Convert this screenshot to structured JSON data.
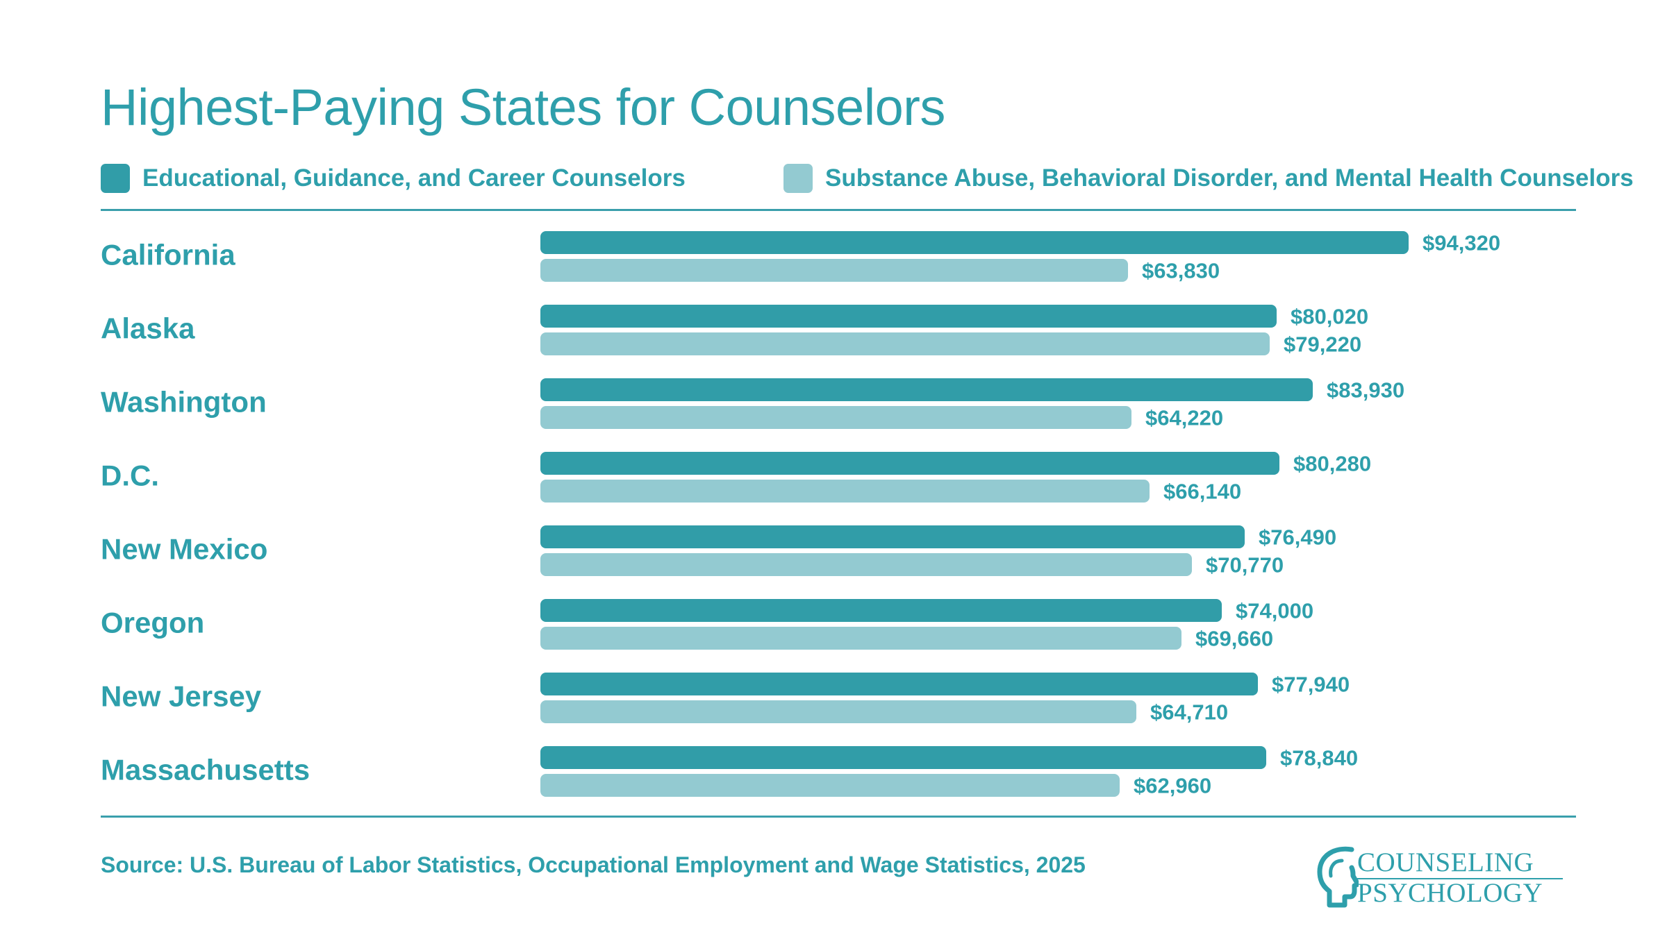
{
  "title": "Highest-Paying States for Counselors",
  "source": "Source: U.S. Bureau of Labor Statistics, Occupational Employment and Wage Statistics, 2025",
  "logo": {
    "line1": "COUNSELING",
    "line2": "PSYCHOLOGY",
    "icon": "head-profile-icon"
  },
  "colors": {
    "dark": "#319da8",
    "light": "#93cad1",
    "text": "#2e9fab"
  },
  "chart_data": {
    "type": "bar",
    "orientation": "horizontal",
    "title": "Highest-Paying States for Counselors",
    "categories": [
      "California",
      "Alaska",
      "Washington",
      "D.C.",
      "New Mexico",
      "Oregon",
      "New Jersey",
      "Massachusetts"
    ],
    "series": [
      {
        "name": "Educational, Guidance, and Career Counselors",
        "color": "#319da8",
        "values": [
          94320,
          80020,
          83930,
          80280,
          76490,
          74000,
          77940,
          78840
        ],
        "labels": [
          "$94,320",
          "$80,020",
          "$83,930",
          "$80,280",
          "$76,490",
          "$74,000",
          "$77,940",
          "$78,840"
        ]
      },
      {
        "name": "Substance Abuse, Behavioral Disorder, and Mental Health Counselors",
        "color": "#93cad1",
        "values": [
          63830,
          79220,
          64220,
          66140,
          70770,
          69660,
          64710,
          62960
        ],
        "labels": [
          "$63,830",
          "$79,220",
          "$64,220",
          "$66,140",
          "$70,770",
          "$69,660",
          "$64,710",
          "$62,960"
        ]
      }
    ],
    "xlim": [
      0,
      94320
    ],
    "grid": false,
    "legend_position": "top"
  }
}
